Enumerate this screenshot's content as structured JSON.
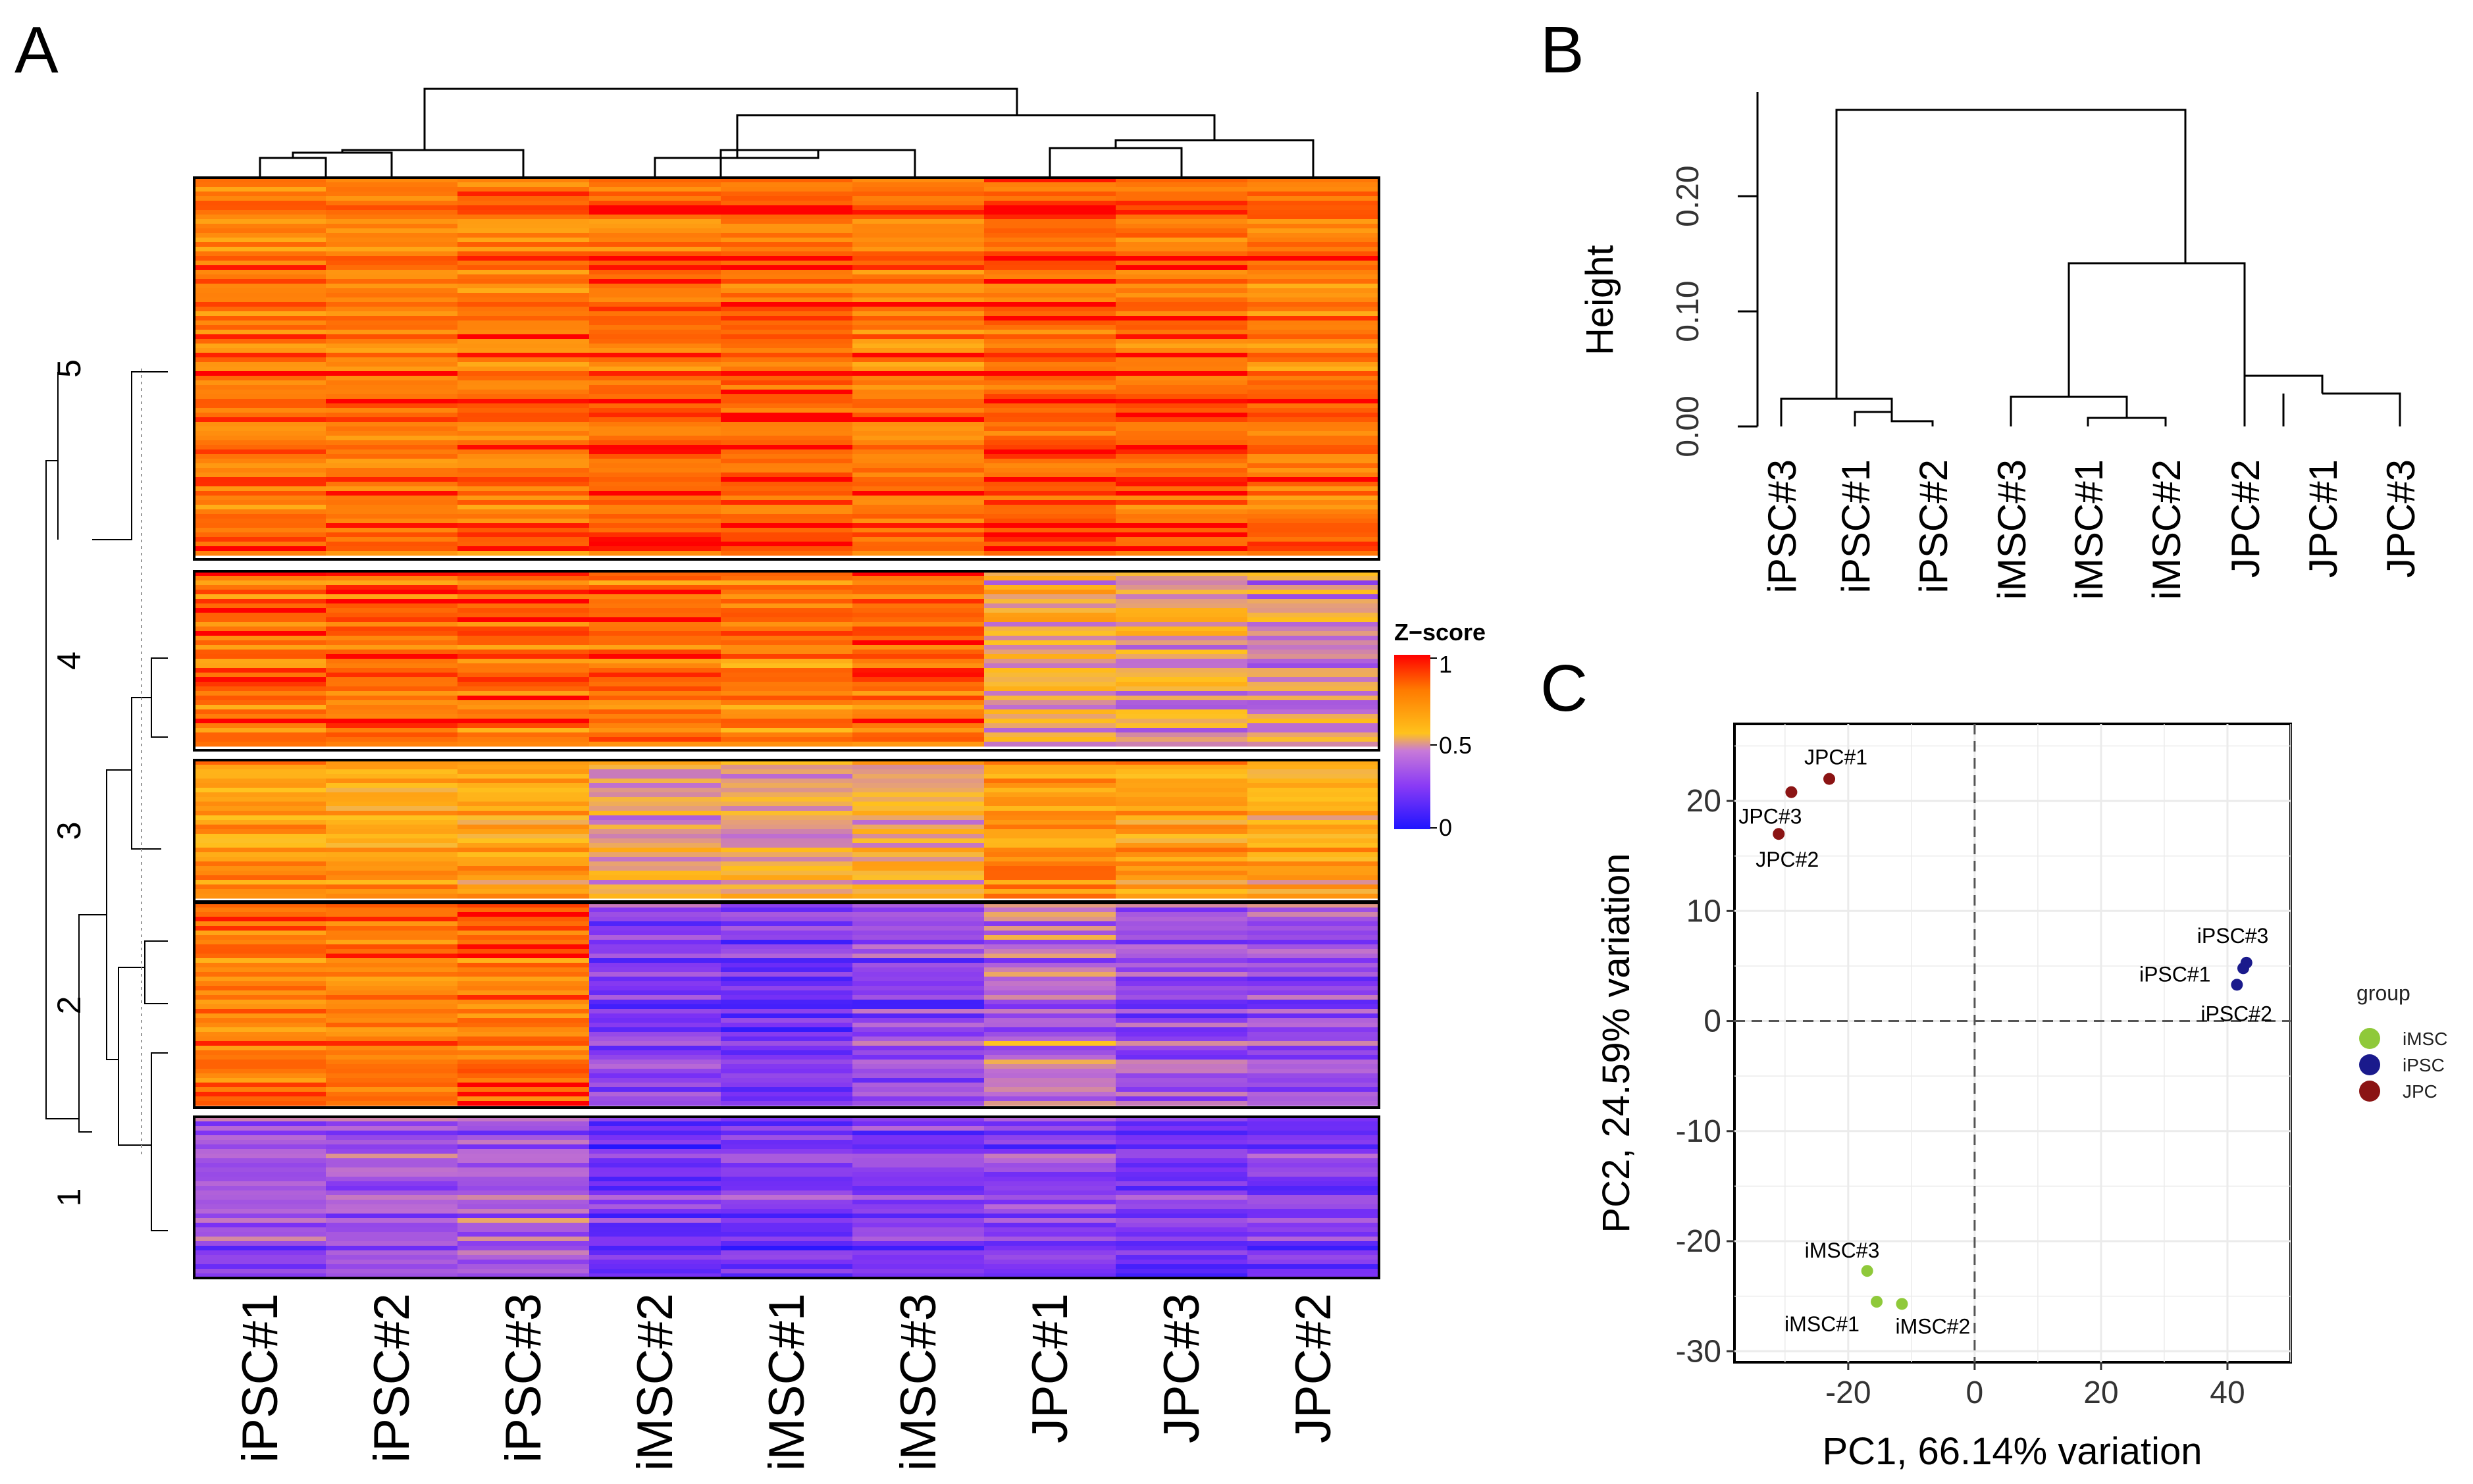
{
  "panels": {
    "a": "A",
    "b": "B",
    "c": "C"
  },
  "chart_data": [
    {
      "type": "heatmap",
      "panel": "A",
      "columns": [
        "iPSC#1",
        "iPSC#2",
        "iPSC#3",
        "iMSC#2",
        "iMSC#1",
        "iMSC#3",
        "JPC#1",
        "JPC#3",
        "JPC#2"
      ],
      "row_clusters": [
        "5",
        "4",
        "3",
        "2",
        "1"
      ],
      "cluster_mean_z": [
        [
          0.85,
          0.85,
          0.85,
          0.9,
          0.9,
          0.85,
          0.92,
          0.88,
          0.85
        ],
        [
          0.85,
          0.85,
          0.85,
          0.85,
          0.8,
          0.85,
          0.55,
          0.5,
          0.45
        ],
        [
          0.75,
          0.72,
          0.72,
          0.52,
          0.55,
          0.58,
          0.78,
          0.72,
          0.68
        ],
        [
          0.82,
          0.82,
          0.85,
          0.25,
          0.22,
          0.28,
          0.4,
          0.32,
          0.3
        ],
        [
          0.3,
          0.32,
          0.35,
          0.2,
          0.22,
          0.25,
          0.25,
          0.22,
          0.22
        ]
      ],
      "legend": {
        "title": "Z−score",
        "ticks": [
          "1",
          "0.5",
          "0"
        ],
        "range": [
          0,
          1
        ]
      },
      "colors": {
        "low": "#1f14ff",
        "mid_low": "#8a3bf5",
        "mid": "#c87ad8",
        "mid_high": "#ffc21c",
        "high": "#ff5b00",
        "top": "#ff0000"
      }
    },
    {
      "type": "dendrogram",
      "panel": "B",
      "ylabel": "Height",
      "ytick_labels": [
        "0.00",
        "0.10",
        "0.20"
      ],
      "yticks": [
        0,
        0.1,
        0.2
      ],
      "ylim": [
        0,
        0.28
      ],
      "leaves": [
        "iPSC#3",
        "iPSC#1",
        "iPSC#2",
        "iMSC#3",
        "iMSC#1",
        "iMSC#2",
        "JPC#2",
        "JPC#1",
        "JPC#3"
      ],
      "merges": [
        {
          "left": "iPSC#1",
          "right": "iPSC#2",
          "height": 0.012
        },
        {
          "left": "iPSC#3",
          "right": "(iPSC#1,iPSC#2)",
          "height": 0.026
        },
        {
          "left": "iMSC#1",
          "right": "iMSC#2",
          "height": 0.009
        },
        {
          "left": "iMSC#3",
          "right": "(iMSC#1,iMSC#2)",
          "height": 0.025
        },
        {
          "left": "JPC#1",
          "right": "JPC#3",
          "height": 0.028
        },
        {
          "left": "JPC#2",
          "right": "(JPC#1,JPC#3)",
          "height": 0.042
        },
        {
          "left": "iMSC",
          "right": "JPC",
          "height": 0.14
        },
        {
          "left": "iPSC",
          "right": "iMSC+JPC",
          "height": 0.275
        }
      ]
    },
    {
      "type": "scatter",
      "panel": "C",
      "xlabel": "PC1, 66.14% variation",
      "ylabel": "PC2, 24.59% variation",
      "xlim": [
        -38,
        50
      ],
      "ylim": [
        -31,
        27
      ],
      "xticks": [
        -20,
        0,
        20,
        40
      ],
      "xtick_labels": [
        "-20",
        "0",
        "20",
        "40"
      ],
      "yticks": [
        -30,
        -20,
        -10,
        0,
        10,
        20
      ],
      "ytick_labels": [
        "-30",
        "-20",
        "-10",
        "0",
        "10",
        "20"
      ],
      "legend_title": "group",
      "groups": [
        {
          "name": "iMSC",
          "color": "#8fc93a"
        },
        {
          "name": "iPSC",
          "color": "#1a1a8c"
        },
        {
          "name": "JPC",
          "color": "#8b1414"
        }
      ],
      "points": [
        {
          "label": "JPC#1",
          "group": "JPC",
          "x": -23,
          "y": 22
        },
        {
          "label": "JPC#3",
          "group": "JPC",
          "x": -29,
          "y": 20.8
        },
        {
          "label": "JPC#2",
          "group": "JPC",
          "x": -31,
          "y": 17
        },
        {
          "label": "iPSC#3",
          "group": "iPSC",
          "x": 43,
          "y": 5.3
        },
        {
          "label": "iPSC#1",
          "group": "iPSC",
          "x": 42.5,
          "y": 4.8
        },
        {
          "label": "iPSC#2",
          "group": "iPSC",
          "x": 41.5,
          "y": 3.3
        },
        {
          "label": "iMSC#3",
          "group": "iMSC",
          "x": -17,
          "y": -22.7
        },
        {
          "label": "iMSC#1",
          "group": "iMSC",
          "x": -15.5,
          "y": -25.5
        },
        {
          "label": "iMSC#2",
          "group": "iMSC",
          "x": -11.5,
          "y": -25.7
        }
      ]
    }
  ]
}
